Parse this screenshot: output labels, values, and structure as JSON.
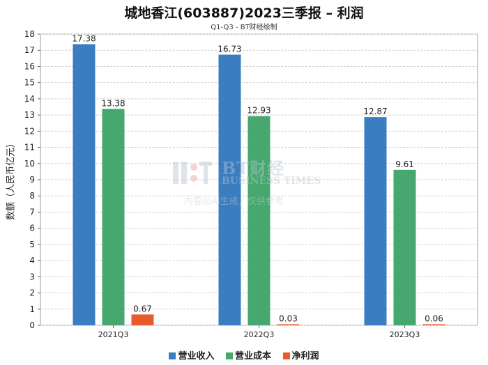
{
  "title": "城地香江(603887)2023三季报 – 利润",
  "subtitle": "Q1-Q3 - BT财经绘制",
  "colors": {
    "revenue": "#3a7dc0",
    "cost": "#46a86e",
    "profit": "#e85a2c"
  },
  "watermark": {
    "line1": "BT财经",
    "line2": "BUSINESS TIMES",
    "line3": "内容由AI生成，仅供参考"
  },
  "chart_data": {
    "type": "bar",
    "title": "城地香江(603887)2023三季报 – 利润",
    "subtitle": "Q1-Q3 - BT财经绘制",
    "ylabel": "数额（人民币亿元）",
    "xlabel": "",
    "ylim": [
      0,
      18
    ],
    "yticks": [
      0,
      1,
      2,
      3,
      4,
      5,
      6,
      7,
      8,
      9,
      10,
      11,
      12,
      13,
      14,
      15,
      16,
      17,
      18
    ],
    "grid": true,
    "legend_position": "bottom",
    "categories": [
      "2021Q3",
      "2022Q3",
      "2023Q3"
    ],
    "series": [
      {
        "name": "营业收入",
        "color": "#3a7dc0",
        "values": [
          17.38,
          16.73,
          12.87
        ],
        "labels": [
          "17.38",
          "16.73",
          "12.87"
        ]
      },
      {
        "name": "营业成本",
        "color": "#46a86e",
        "values": [
          13.38,
          12.93,
          9.61
        ],
        "labels": [
          "13.38",
          "12.93",
          "9.61"
        ]
      },
      {
        "name": "净利润",
        "color": "#e85a2c",
        "values": [
          0.67,
          0.03,
          0.06
        ],
        "labels": [
          "0.67",
          "0.03",
          "0.06"
        ]
      }
    ]
  }
}
